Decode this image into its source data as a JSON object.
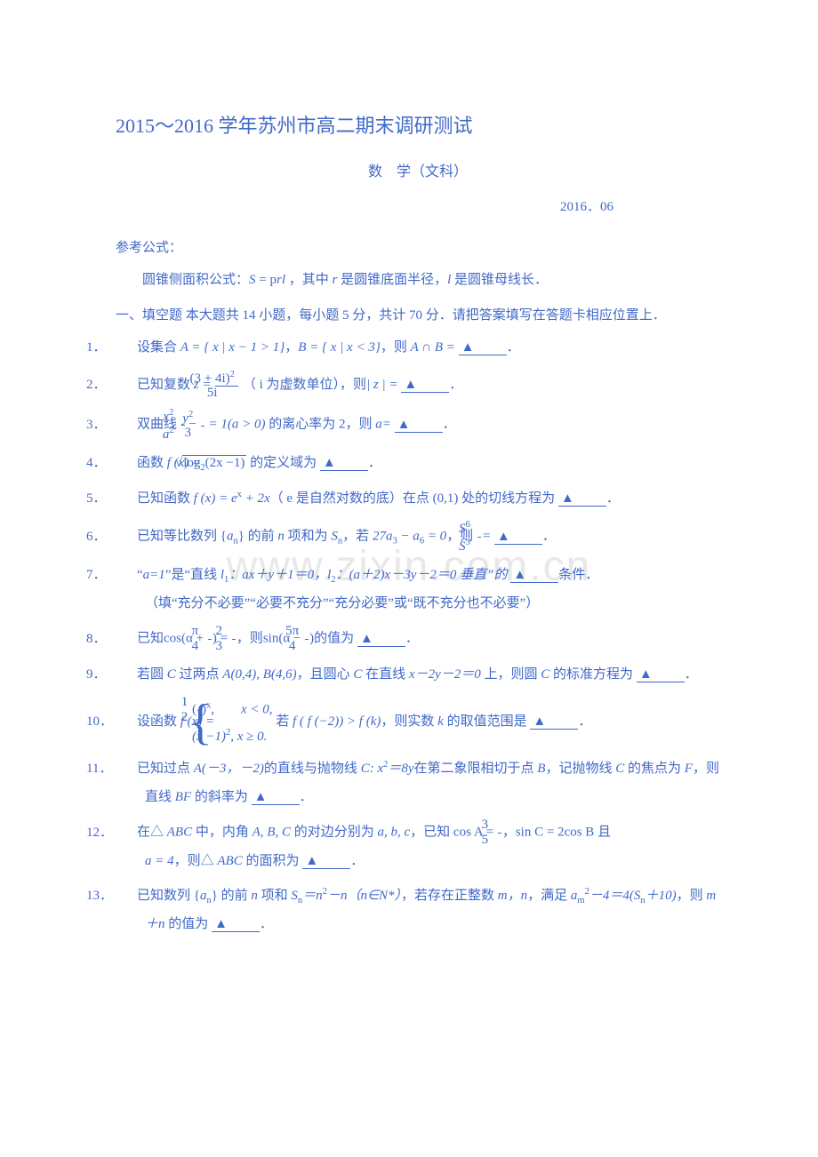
{
  "colors": {
    "text": "#4169c8",
    "watermark": "#e8e8e8",
    "background": "#ffffff"
  },
  "watermark": "www.zixin.com.cn",
  "title": "2015～2016 学年苏州市高二期末调研测试",
  "subtitle": "数　学（文科）",
  "date": "2016．06",
  "ref_label": "参考公式：",
  "formula_text": "圆锥侧面积公式：S = p rl ，其中 r 是圆锥底面半径，l 是圆锥母线长．",
  "section_header": "一、填空题  本大题共 14 小题，每小题 5 分，共计 70 分．请把答案填写在答题卡相应位置上．",
  "blank_symbol": "▲",
  "questions": {
    "q1": {
      "num": "1．",
      "pre": "设集合 ",
      "mid": "，",
      "post": "，则 ",
      "tail": "．",
      "setA": "A = { x | x − 1 > 1}",
      "setB": "B = { x | x < 3}",
      "expr": "A ∩ B ="
    },
    "q2": {
      "num": "2．",
      "pre": "已知复数 ",
      "note": "（ i 为虚数单位），则",
      "tail": "．",
      "z": "z =",
      "frac_n": "(3 + 4i)",
      "frac_n_sup": "2",
      "frac_d": "5i",
      "abs": "| z | ="
    },
    "q3": {
      "num": "3．",
      "pre": "双曲线 ",
      "cond": " 的离心率为 2，则 ",
      "var": "a=",
      "tail": "．",
      "t1n": "x",
      "t1d": "a",
      "t2n": "y",
      "t2d": "3",
      "rhs": "= 1(a > 0)"
    },
    "q4": {
      "num": "4．",
      "pre": "函数 ",
      "fx": "f (x) =",
      "inside": "log",
      "base": "2",
      "arg": "(2x −1)",
      "post": " 的定义域为",
      "tail": "．"
    },
    "q5": {
      "num": "5．",
      "pre": "已知函数 ",
      "fx": "f (x) = e",
      "sup": "x",
      "plus": " + 2x",
      "mid": "（ e 是自然对数的底）在点 ",
      "pt": "(0,1)",
      "post": " 处的切线方程为",
      "tail": "．"
    },
    "q6": {
      "num": "6．",
      "pre": "已知等比数列 {",
      "an": "a",
      "ansub": "n",
      "pre2": "} 的前 ",
      "nvar": "n",
      "pre3": " 项和为 ",
      "Sn": "S",
      "pre4": "，若 ",
      "eq": "27a",
      "s3": "3",
      "minus": " − a",
      "s6": "6",
      "rhs": " = 0",
      "then": "，则",
      "fn": "S",
      "fnup": "6",
      "fd": "S",
      "fdup": "3",
      "eq2": "=",
      "tail": "．"
    },
    "q7": {
      "num": "7．",
      "pre": "“",
      "a1": "a=1",
      "mid1": "”是“直线 ",
      "l1": "l",
      "l1s": "1",
      "l1eq": "：ax＋y＋1＝0，",
      "l2": "l",
      "l2s": "2",
      "l2eq": "：(a＋2)x－3y－2＝0 垂直”的",
      "post": "条件．",
      "note": "（填“充分不必要”“必要不充分”“充分必要”或“既不充分也不必要”）"
    },
    "q8": {
      "num": "8．",
      "pre": "已知",
      "cos": "cos(α +",
      "pi4n": "π",
      "pi4d": "4",
      "rp": ") =",
      "v2": "2",
      "v3": "3",
      "then": "，则",
      "sin": "sin(α −",
      "p5n": "5π",
      "p5d": "4",
      "rp2": ")",
      "post": "的值为",
      "tail": "．"
    },
    "q9": {
      "num": "9．",
      "pre": "若圆 ",
      "Cv": "C",
      "p2": " 过两点 ",
      "pts": "A(0,4), B(4,6)",
      "p3": "，且圆心 ",
      "p4": " 在直线 ",
      "line": "x－2y－2＝0",
      "p5": " 上，则圆 ",
      "p6": " 的标准方程为",
      "tail": "．"
    },
    "q10": {
      "num": "10．",
      "pre": "设函数 ",
      "fx": "f (x) =",
      "c1a": "(",
      "c1n": "1",
      "c1d": "2",
      "c1b": ")",
      "c1sup": "x",
      "c1cond": ",　　x < 0,",
      "c2": "(x −1)",
      "c2sup": "2",
      "c2cond": ", x ≥ 0.",
      "mid": " 若 ",
      "cond": "f ( f (−2)) > f (k)",
      "then": "，则实数 ",
      "kv": "k",
      "post": " 的取值范围是",
      "tail": "．"
    },
    "q11": {
      "num": "11．",
      "pre": "已知过点 ",
      "A": "A(－3，－2)",
      "p2": "的直线与抛物线 ",
      "Cv": "C",
      "eq": ": x",
      "s2": "2",
      "eq2": "＝8y",
      "p3": "在第二象限相切于点 ",
      "Bv": "B",
      "p4": "，记抛物线 ",
      "p5": " 的焦点为 ",
      "Fv": "F",
      "p6": "，则直线 ",
      "BF": "BF",
      "p7": " 的斜率为",
      "tail": "．"
    },
    "q12": {
      "num": "12．",
      "pre": "在△ ",
      "ABC": "ABC",
      "p2": " 中，内角 ",
      "angles": "A, B, C",
      "p3": " 的对边分别为 ",
      "sides": "a, b, c",
      "p4": "，已知 ",
      "cosA": "cos A =",
      "n3": "3",
      "d5": "5",
      "comma": "，",
      "sinC": "sin C = 2cos B",
      "and": " 且",
      "a4": "a = 4",
      "then": "，则△ ",
      "p5": " 的面积为",
      "tail": "．"
    },
    "q13": {
      "num": "13．",
      "pre": "已知数列 {",
      "an": "a",
      "ansub": "n",
      "p2": "} 的前 ",
      "nv": "n",
      "p3": " 项和 ",
      "Sn": "S",
      "eq": "＝n",
      "s2": "2",
      "eq2": "－n（n∈N*）",
      "p4": "，若存在正整数 ",
      "mn": "m，n",
      "p5": "，满足 ",
      "am": "a",
      "amsub": "m",
      "amsup": "2",
      "eq3": "－4＝4(",
      "Sn2": "S",
      "eq4": "＋10)",
      "then": "，则 ",
      "sum": "m＋n",
      "post": " 的值为",
      "tail": "．"
    }
  }
}
